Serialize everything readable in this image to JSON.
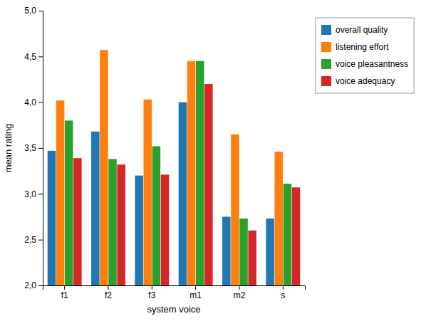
{
  "chart_data": {
    "type": "bar",
    "xlabel": "system voice",
    "ylabel": "mean rating",
    "categories": [
      "f1",
      "f2",
      "f3",
      "m1",
      "m2",
      "s"
    ],
    "series": [
      {
        "name": "overall quality",
        "values": [
          3.47,
          3.68,
          3.2,
          4.0,
          2.75,
          2.73
        ]
      },
      {
        "name": "listening effort",
        "values": [
          4.02,
          4.57,
          4.03,
          4.45,
          3.65,
          3.46
        ]
      },
      {
        "name": "voice pleasantness",
        "values": [
          3.8,
          3.38,
          3.52,
          4.45,
          2.73,
          3.11
        ]
      },
      {
        "name": "voice adequacy",
        "values": [
          3.39,
          3.32,
          3.21,
          4.2,
          2.6,
          3.07
        ]
      }
    ],
    "ylim": [
      2.0,
      5.0
    ],
    "yticks": [
      {
        "value": 2.0,
        "label": "2,0"
      },
      {
        "value": 2.5,
        "label": "2,5"
      },
      {
        "value": 3.0,
        "label": "3,0"
      },
      {
        "value": 3.5,
        "label": "3,5"
      },
      {
        "value": 4.0,
        "label": "4,0"
      },
      {
        "value": 4.5,
        "label": "4,5"
      },
      {
        "value": 5.0,
        "label": "5,0"
      }
    ],
    "grid": false,
    "legend": "right"
  }
}
